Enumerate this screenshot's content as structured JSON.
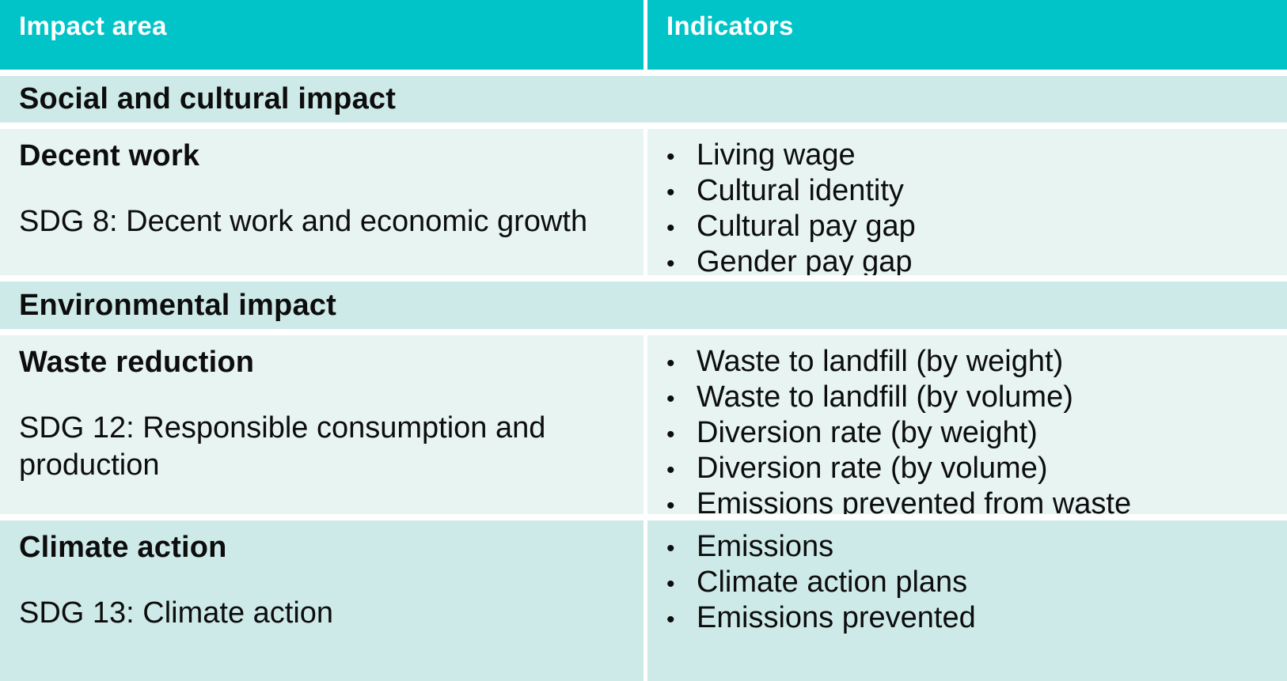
{
  "table": {
    "columns": [
      "Impact area",
      "Indicators"
    ],
    "sections": [
      {
        "title": "Social and cultural impact",
        "rows": [
          {
            "impact_area": "Decent work",
            "sdg": "SDG 8: Decent work and economic growth",
            "indicators": [
              "Living wage",
              "Cultural identity",
              "Cultural pay gap",
              "Gender pay gap"
            ]
          }
        ]
      },
      {
        "title": "Environmental impact",
        "rows": [
          {
            "impact_area": "Waste reduction",
            "sdg": "SDG 12: Responsible consumption and production",
            "indicators": [
              "Waste to landfill (by weight)",
              "Waste to landfill (by volume)",
              "Diversion rate (by weight)",
              "Diversion rate (by volume)",
              "Emissions prevented from waste"
            ]
          },
          {
            "impact_area": "Climate action",
            "sdg": "SDG 13: Climate action",
            "indicators": [
              "Emissions",
              "Climate action plans",
              "Emissions prevented"
            ]
          }
        ]
      }
    ]
  },
  "icons": {
    "bullet": "•"
  },
  "colors": {
    "header_bg": "#00C4C8",
    "header_text": "#FFFFFF",
    "band_dark": "#CDEAE9",
    "band_light": "#E7F4F2",
    "body_text": "#0D0D0D",
    "gutter": "#FFFFFF"
  }
}
